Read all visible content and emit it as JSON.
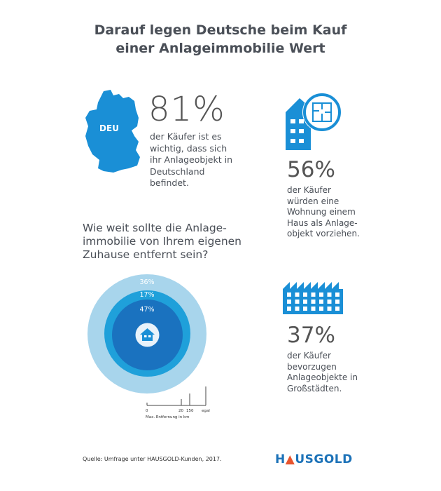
{
  "title": [
    "Darauf legen Deutsche beim Kauf",
    "einer Anlageimmobilie Wert"
  ],
  "stat1": {
    "map_label": "DEU",
    "value": "81%",
    "text": [
      "der Käufer ist es",
      "wichtig, dass sich",
      "ihr Anlageobjekt in",
      "Deutschland",
      "befindet."
    ]
  },
  "stat2": {
    "value": "56%",
    "text": [
      "der Käufer",
      "würden eine",
      "Wohnung einem",
      "Haus als Anlage-",
      "objekt vorziehen."
    ]
  },
  "stat3": {
    "value": "37%",
    "text": [
      "der Käufer",
      "bevorzugen",
      "Anlageobjekte in",
      "Großstädten."
    ]
  },
  "question": [
    "Wie weit sollte die Anlage-",
    "immobilie von Ihrem eigenen",
    "Zuhause entfernt sein?"
  ],
  "chart_data": {
    "type": "nested-circles",
    "rings": [
      {
        "label": "36%",
        "value": 36,
        "range": "egal"
      },
      {
        "label": "17%",
        "value": 17,
        "range": "20-150 km"
      },
      {
        "label": "47%",
        "value": 47,
        "range": "0-20 km"
      }
    ],
    "scale": {
      "ticks": [
        "0",
        "20",
        "150",
        "egal"
      ],
      "label": "Max. Entfernung in km"
    }
  },
  "colors": {
    "outer": "#a8d5ec",
    "middle": "#1fa0da",
    "inner": "#1a72bf",
    "icon": "#1a8fd6"
  },
  "footer": "Quelle: Umfrage unter HAUSGOLD-Kunden, 2017.",
  "logo": "HAUSGOLD"
}
